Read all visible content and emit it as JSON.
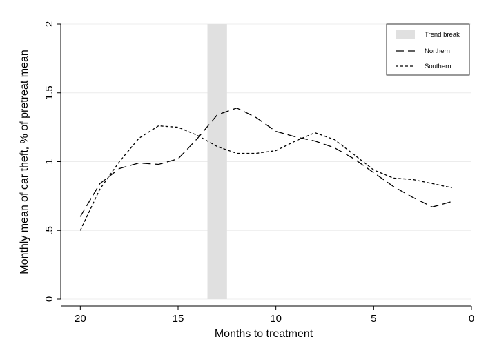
{
  "chart_data": {
    "type": "line",
    "xlabel": "Months to treatment",
    "ylabel": "Monthly mean of car theft, % of pretreat mean",
    "xlim": [
      21,
      0
    ],
    "ylim": [
      0,
      2
    ],
    "x_reversed": true,
    "grid": "horizontal",
    "legend_position": "top-right",
    "x_ticks": [
      20,
      15,
      10,
      5,
      0
    ],
    "y_ticks": [
      0,
      0.5,
      1,
      1.5,
      2
    ],
    "x_tick_labels": [
      "20",
      "15",
      "10",
      "5",
      "0"
    ],
    "y_tick_labels": [
      "0",
      ".5",
      "1",
      "1.5",
      "2"
    ],
    "trend_break": {
      "name": "Trend break",
      "x_start": 13.5,
      "x_end": 12.5,
      "color": "#e0e0e0"
    },
    "series": [
      {
        "name": "Northern",
        "style": "long-dash",
        "x": [
          20,
          19,
          18,
          17,
          16,
          15,
          14,
          13,
          12,
          11,
          10,
          9,
          8,
          7,
          6,
          5,
          4,
          3,
          2,
          1
        ],
        "values": [
          0.6,
          0.84,
          0.95,
          0.99,
          0.98,
          1.02,
          1.17,
          1.34,
          1.39,
          1.32,
          1.22,
          1.18,
          1.15,
          1.1,
          1.02,
          0.92,
          0.82,
          0.74,
          0.67,
          0.71
        ]
      },
      {
        "name": "Southern",
        "style": "short-dash",
        "x": [
          20,
          19,
          18,
          17,
          16,
          15,
          14,
          13,
          12,
          11,
          10,
          9,
          8,
          7,
          6,
          5,
          4,
          3,
          2,
          1
        ],
        "values": [
          0.5,
          0.8,
          1.0,
          1.17,
          1.26,
          1.25,
          1.19,
          1.11,
          1.06,
          1.06,
          1.08,
          1.15,
          1.21,
          1.16,
          1.05,
          0.94,
          0.88,
          0.87,
          0.84,
          0.81
        ]
      }
    ]
  }
}
